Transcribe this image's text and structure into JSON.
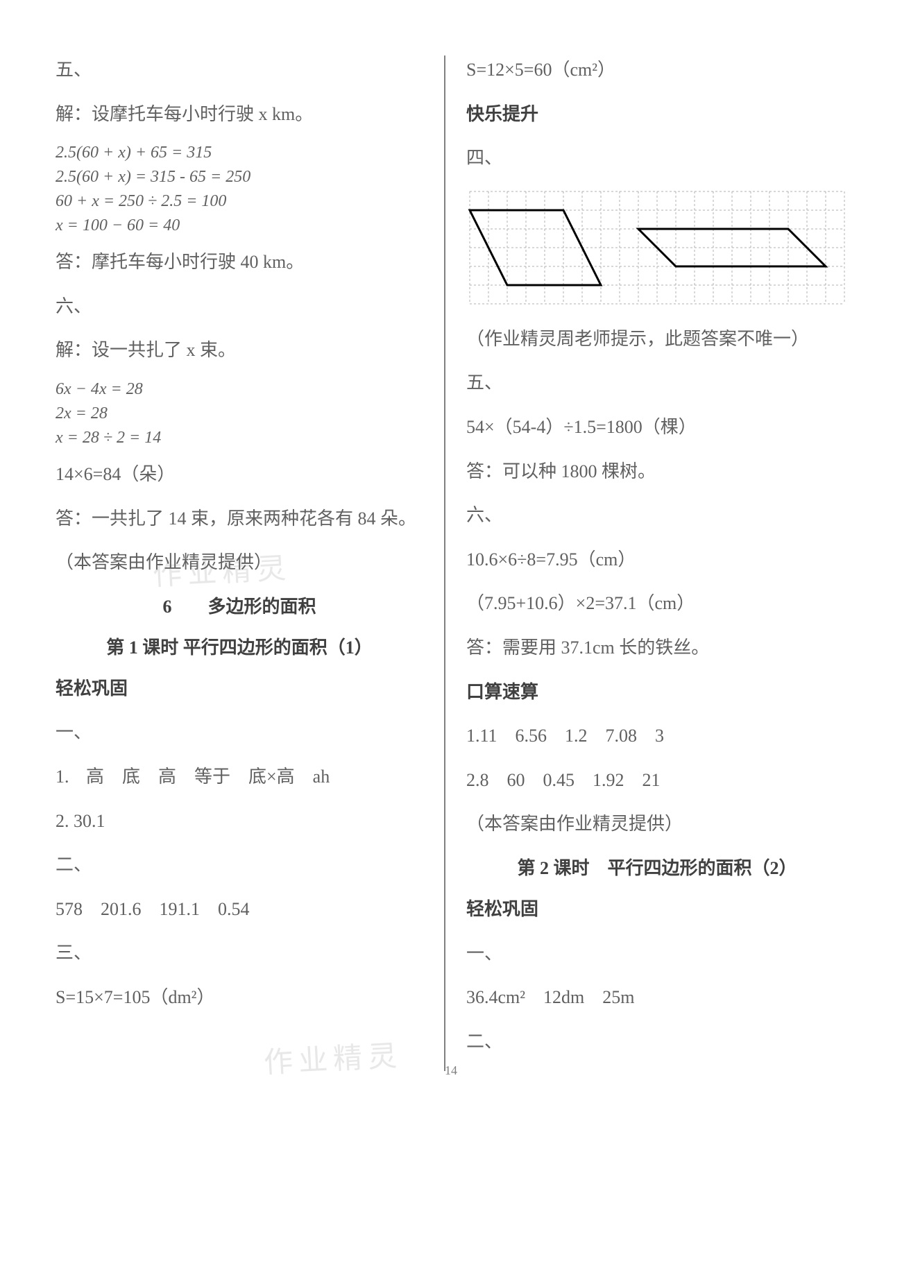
{
  "page_number": "14",
  "watermark_text": "作业精灵",
  "left": {
    "s5": "五、",
    "s5_intro": "解：设摩托车每小时行驶 x km。",
    "s5_eq1": "2.5(60 + x) + 65 = 315",
    "s5_eq2": "2.5(60 + x) = 315 - 65 = 250",
    "s5_eq3": "60 + x = 250 ÷ 2.5 = 100",
    "s5_eq4": "x = 100 − 60 = 40",
    "s5_ans": "答：摩托车每小时行驶 40 km。",
    "s6": "六、",
    "s6_intro": "解：设一共扎了 x 束。",
    "s6_eq1": "6x − 4x = 28",
    "s6_eq2": "2x = 28",
    "s6_eq3": "x = 28 ÷ 2 = 14",
    "s6_calc": "14×6=84（朵）",
    "s6_ans": "答：一共扎了 14 束，原来两种花各有 84 朵。",
    "s6_note": "（本答案由作业精灵提供）",
    "chapter": "6　　多边形的面积",
    "lesson1": "第 1 课时  平行四边形的面积（1）",
    "practice_title": "轻松巩固",
    "p1": "一、",
    "p1_1": "1.  高　底　高　等于　底×高　ah",
    "p1_2": "2.  30.1",
    "p2": "二、",
    "p2_vals": "578　201.6　191.1　0.54",
    "p3": "三、",
    "p3_calc": "S=15×7=105（dm²）"
  },
  "right": {
    "top_calc": "S=12×5=60（cm²）",
    "happy_title": "快乐提升",
    "s4": "四、",
    "s4_note": "（作业精灵周老师提示，此题答案不唯一）",
    "s5": "五、",
    "s5_calc": "54×（54-4）÷1.5=1800（棵）",
    "s5_ans": "答：可以种 1800 棵树。",
    "s6": "六、",
    "s6_calc1": "10.6×6÷8=7.95（cm）",
    "s6_calc2": "（7.95+10.6）×2=37.1（cm）",
    "s6_ans": "答：需要用 37.1cm 长的铁丝。",
    "mental_title": "口算速算",
    "mental_row1": "1.11　6.56　1.2　7.08　3",
    "mental_row2": "2.8　60　0.45　1.92　21",
    "mental_note": "（本答案由作业精灵提供）",
    "lesson2": "第 2 课时　平行四边形的面积（2）",
    "practice_title": "轻松巩固",
    "p1": "一、",
    "p1_vals": "36.4cm²　12dm　25m",
    "p2": "二、"
  },
  "diagram": {
    "grid_cols": 20,
    "grid_rows": 6,
    "cell_size": 27,
    "grid_line_color": "#b0b0b0",
    "shape_line_color": "#000000",
    "shape_line_width": 3,
    "parallelogram1": {
      "points": [
        [
          2,
          5
        ],
        [
          7,
          5
        ],
        [
          5,
          1
        ],
        [
          0,
          1
        ]
      ]
    },
    "parallelogram2": {
      "points": [
        [
          11,
          4
        ],
        [
          19,
          4
        ],
        [
          17,
          2
        ],
        [
          9,
          2
        ]
      ]
    }
  }
}
